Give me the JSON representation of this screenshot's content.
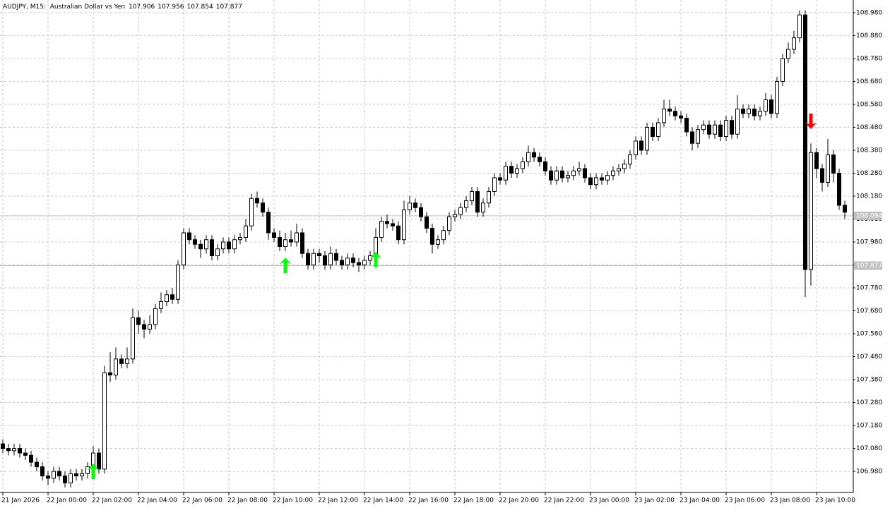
{
  "chart_data": {
    "type": "candlestick",
    "title": "AUDJPY, M15:  Australian Dollar vs Yen",
    "last_ohlc": [
      107.906,
      107.956,
      107.854,
      107.877
    ],
    "categories": [
      "21 Jan 2026",
      null,
      null,
      null,
      null,
      null,
      null,
      null,
      "22 Jan 00:00",
      null,
      null,
      null,
      null,
      null,
      null,
      null,
      "22 Jan 02:00",
      null,
      null,
      null,
      null,
      null,
      null,
      null,
      "22 Jan 04:00",
      null,
      null,
      null,
      null,
      null,
      null,
      null,
      "22 Jan 06:00",
      null,
      null,
      null,
      null,
      null,
      null,
      null,
      "22 Jan 08:00",
      null,
      null,
      null,
      null,
      null,
      null,
      null,
      "22 Jan 10:00",
      null,
      null,
      null,
      null,
      null,
      null,
      null,
      "22 Jan 12:00",
      null,
      null,
      null,
      null,
      null,
      null,
      null,
      "22 Jan 14:00",
      null,
      null,
      null,
      null,
      null,
      null,
      null,
      "22 Jan 16:00",
      null,
      null,
      null,
      null,
      null,
      null,
      null,
      "22 Jan 18:00",
      null,
      null,
      null,
      null,
      null,
      null,
      null,
      "22 Jan 20:00",
      null,
      null,
      null,
      null,
      null,
      null,
      null,
      "22 Jan 22:00",
      null,
      null,
      null,
      null,
      null,
      null,
      null,
      "23 Jan 00:00",
      null,
      null,
      null,
      null,
      null,
      null,
      null,
      "23 Jan 02:00",
      null,
      null,
      null,
      null,
      null,
      null,
      null,
      "23 Jan 04:00",
      null,
      null,
      null,
      null,
      null,
      null,
      null,
      "23 Jan 06:00",
      null,
      null,
      null,
      null,
      null,
      null,
      null,
      "23 Jan 08:00",
      null,
      null,
      null,
      null,
      null,
      null,
      null,
      "23 Jan 10:00",
      null,
      null,
      null,
      null,
      null
    ],
    "open": [
      107.1,
      107.08,
      107.07,
      107.08,
      107.06,
      107.05,
      107.02,
      107.0,
      106.96,
      106.95,
      106.98,
      106.96,
      106.93,
      106.97,
      106.96,
      106.97,
      107.0,
      107.06,
      106.99,
      107.41,
      107.4,
      107.47,
      107.45,
      107.47,
      107.65,
      107.62,
      107.6,
      107.62,
      107.69,
      107.72,
      107.75,
      107.73,
      107.88,
      108.02,
      107.99,
      107.97,
      107.95,
      107.99,
      107.92,
      107.95,
      107.98,
      107.95,
      107.99,
      108.0,
      108.05,
      108.17,
      108.15,
      108.11,
      108.02,
      108.0,
      107.96,
      107.99,
      107.98,
      108.02,
      107.93,
      107.88,
      107.93,
      107.92,
      107.88,
      107.93,
      107.9,
      107.88,
      107.91,
      107.89,
      107.88,
      107.9,
      107.92,
      108.0,
      108.07,
      108.06,
      108.05,
      107.99,
      108.12,
      108.15,
      108.13,
      108.09,
      108.04,
      107.97,
      107.99,
      108.03,
      108.09,
      108.1,
      108.13,
      108.16,
      108.2,
      108.11,
      108.15,
      108.2,
      108.26,
      108.25,
      108.31,
      108.28,
      108.3,
      108.33,
      108.37,
      108.35,
      108.33,
      108.29,
      108.25,
      108.29,
      108.26,
      108.27,
      108.29,
      108.3,
      108.26,
      108.23,
      108.26,
      108.25,
      108.27,
      108.29,
      108.3,
      108.32,
      108.36,
      108.42,
      108.38,
      108.48,
      108.44,
      108.5,
      108.56,
      108.55,
      108.53,
      108.52,
      108.46,
      108.41,
      108.47,
      108.49,
      108.45,
      108.49,
      108.44,
      108.51,
      108.45,
      108.56,
      108.54,
      108.56,
      108.53,
      108.55,
      108.6,
      108.54,
      108.68,
      108.78,
      108.82,
      108.87,
      108.97,
      107.86,
      108.37,
      108.3,
      108.24,
      108.36,
      108.28,
      108.14
    ],
    "high": [
      107.12,
      107.1,
      107.1,
      107.1,
      107.08,
      107.07,
      107.04,
      107.02,
      106.98,
      107.0,
      107.0,
      106.98,
      106.99,
      106.99,
      106.99,
      107.02,
      107.09,
      107.08,
      107.44,
      107.5,
      107.52,
      107.49,
      107.52,
      107.69,
      107.68,
      107.64,
      107.66,
      107.71,
      107.76,
      107.77,
      107.78,
      107.9,
      108.04,
      108.04,
      108.01,
      107.99,
      108.01,
      108.01,
      107.97,
      108.0,
      108.0,
      108.01,
      108.02,
      108.08,
      108.19,
      108.2,
      108.17,
      108.13,
      108.04,
      108.03,
      108.02,
      108.03,
      108.06,
      108.04,
      107.95,
      107.95,
      107.95,
      107.94,
      107.96,
      107.95,
      107.92,
      107.93,
      107.93,
      107.91,
      107.92,
      107.94,
      108.04,
      108.09,
      108.1,
      108.08,
      108.07,
      108.16,
      108.18,
      108.17,
      108.15,
      108.11,
      108.06,
      108.01,
      108.05,
      108.11,
      108.12,
      108.15,
      108.18,
      108.22,
      108.22,
      108.17,
      108.22,
      108.28,
      108.28,
      108.33,
      108.33,
      108.32,
      108.35,
      108.4,
      108.39,
      108.37,
      108.35,
      108.31,
      108.31,
      108.31,
      108.29,
      108.31,
      108.33,
      108.32,
      108.28,
      108.28,
      108.28,
      108.29,
      108.31,
      108.32,
      108.34,
      108.38,
      108.44,
      108.44,
      108.5,
      108.5,
      108.52,
      108.6,
      108.6,
      108.57,
      108.55,
      108.54,
      108.48,
      108.49,
      108.51,
      108.51,
      108.51,
      108.51,
      108.53,
      108.53,
      108.62,
      108.58,
      108.58,
      108.58,
      108.57,
      108.63,
      108.62,
      108.7,
      108.8,
      108.85,
      108.9,
      108.99,
      108.99,
      108.41,
      108.39,
      108.32,
      108.43,
      108.38,
      108.3,
      108.16
    ],
    "low": [
      107.06,
      107.05,
      107.05,
      107.04,
      107.03,
      107.0,
      106.98,
      106.94,
      106.92,
      106.93,
      106.94,
      106.91,
      106.91,
      106.94,
      106.94,
      106.95,
      106.98,
      106.97,
      106.97,
      107.37,
      107.38,
      107.43,
      107.43,
      107.45,
      107.58,
      107.56,
      107.58,
      107.6,
      107.67,
      107.7,
      107.71,
      107.71,
      107.86,
      107.97,
      107.95,
      107.91,
      107.93,
      107.9,
      107.9,
      107.93,
      107.93,
      107.93,
      107.97,
      107.98,
      108.03,
      108.13,
      108.09,
      107.99,
      107.98,
      107.94,
      107.94,
      107.96,
      107.96,
      107.91,
      107.86,
      107.86,
      107.89,
      107.86,
      107.86,
      107.88,
      107.86,
      107.86,
      107.87,
      107.85,
      107.86,
      107.88,
      107.9,
      107.98,
      108.04,
      108.03,
      107.97,
      107.97,
      108.1,
      108.11,
      108.07,
      108.02,
      107.93,
      107.95,
      107.97,
      108.01,
      108.07,
      108.08,
      108.11,
      108.14,
      108.09,
      108.09,
      108.13,
      108.18,
      108.23,
      108.23,
      108.26,
      108.26,
      108.28,
      108.31,
      108.33,
      108.31,
      108.27,
      108.23,
      108.23,
      108.24,
      108.24,
      108.25,
      108.27,
      108.24,
      108.21,
      108.21,
      108.23,
      108.23,
      108.25,
      108.27,
      108.28,
      108.3,
      108.34,
      108.36,
      108.36,
      108.42,
      108.42,
      108.48,
      108.53,
      108.51,
      108.5,
      108.44,
      108.38,
      108.39,
      108.45,
      108.43,
      108.43,
      108.42,
      108.42,
      108.43,
      108.43,
      108.52,
      108.52,
      108.51,
      108.51,
      108.53,
      108.52,
      108.52,
      108.66,
      108.76,
      108.8,
      108.85,
      107.74,
      107.79,
      108.26,
      108.2,
      108.22,
      108.24,
      108.12,
      108.08
    ],
    "close": [
      107.08,
      107.07,
      107.08,
      107.06,
      107.05,
      107.02,
      107.0,
      106.96,
      106.95,
      106.98,
      106.96,
      106.93,
      106.97,
      106.96,
      106.97,
      107.0,
      107.06,
      106.99,
      107.41,
      107.4,
      107.47,
      107.45,
      107.47,
      107.65,
      107.62,
      107.6,
      107.62,
      107.69,
      107.72,
      107.75,
      107.73,
      107.88,
      108.02,
      107.99,
      107.97,
      107.95,
      107.99,
      107.92,
      107.95,
      107.98,
      107.95,
      107.99,
      108.0,
      108.05,
      108.17,
      108.15,
      108.11,
      108.02,
      108.0,
      107.96,
      107.99,
      107.98,
      108.02,
      107.93,
      107.88,
      107.93,
      107.92,
      107.88,
      107.93,
      107.9,
      107.88,
      107.91,
      107.89,
      107.88,
      107.9,
      107.92,
      108.0,
      108.07,
      108.06,
      108.05,
      107.99,
      108.12,
      108.15,
      108.13,
      108.09,
      108.04,
      107.97,
      107.99,
      108.03,
      108.09,
      108.1,
      108.13,
      108.16,
      108.2,
      108.11,
      108.15,
      108.2,
      108.26,
      108.25,
      108.31,
      108.28,
      108.3,
      108.33,
      108.37,
      108.35,
      108.33,
      108.29,
      108.25,
      108.29,
      108.26,
      108.27,
      108.29,
      108.3,
      108.26,
      108.23,
      108.26,
      108.25,
      108.27,
      108.29,
      108.3,
      108.32,
      108.36,
      108.42,
      108.38,
      108.48,
      108.44,
      108.5,
      108.56,
      108.55,
      108.53,
      108.52,
      108.46,
      108.41,
      108.47,
      108.49,
      108.45,
      108.49,
      108.44,
      108.51,
      108.45,
      108.56,
      108.54,
      108.56,
      108.53,
      108.55,
      108.6,
      108.54,
      108.68,
      108.78,
      108.82,
      108.87,
      108.97,
      107.86,
      108.37,
      108.3,
      108.24,
      108.36,
      108.28,
      108.14,
      108.11
    ],
    "up_arrows": [
      null,
      null,
      null,
      null,
      null,
      null,
      null,
      null,
      null,
      null,
      null,
      null,
      null,
      null,
      null,
      null,
      107.014,
      null,
      null,
      null,
      null,
      null,
      null,
      null,
      null,
      null,
      null,
      null,
      null,
      null,
      null,
      null,
      null,
      null,
      null,
      null,
      null,
      null,
      null,
      null,
      null,
      null,
      null,
      null,
      null,
      null,
      null,
      null,
      null,
      null,
      107.912,
      null,
      null,
      null,
      null,
      null,
      null,
      null,
      null,
      null,
      null,
      null,
      null,
      null,
      null,
      null,
      107.937,
      null,
      null,
      null,
      null,
      null,
      null,
      null,
      null,
      null,
      null,
      null,
      null,
      null,
      null,
      null,
      null,
      null,
      null,
      null,
      null,
      null,
      null,
      null,
      null,
      null,
      null,
      null,
      null,
      null,
      null,
      null,
      null,
      null,
      null,
      null,
      null,
      null,
      null,
      null,
      null,
      null,
      null,
      null,
      null,
      null,
      null,
      null,
      null,
      null,
      null,
      null,
      null,
      null,
      null,
      null,
      null,
      null,
      null,
      null,
      null,
      null,
      null,
      null,
      null,
      null,
      null,
      null,
      null,
      null,
      null,
      null,
      null,
      null,
      null,
      null,
      null,
      null,
      null,
      null,
      null,
      null,
      null,
      null,
      null,
      null,
      null,
      null
    ],
    "down_arrows": [
      null,
      null,
      null,
      null,
      null,
      null,
      null,
      null,
      null,
      null,
      null,
      null,
      null,
      null,
      null,
      null,
      null,
      null,
      null,
      null,
      null,
      null,
      null,
      null,
      null,
      null,
      null,
      null,
      null,
      null,
      null,
      null,
      null,
      null,
      null,
      null,
      null,
      null,
      null,
      null,
      null,
      null,
      null,
      null,
      null,
      null,
      null,
      null,
      null,
      null,
      null,
      null,
      null,
      null,
      null,
      null,
      null,
      null,
      null,
      null,
      null,
      null,
      null,
      null,
      null,
      null,
      null,
      null,
      null,
      null,
      null,
      null,
      null,
      null,
      null,
      null,
      null,
      null,
      null,
      null,
      null,
      null,
      null,
      null,
      null,
      null,
      null,
      null,
      null,
      null,
      null,
      null,
      null,
      null,
      null,
      null,
      null,
      null,
      null,
      null,
      null,
      null,
      null,
      null,
      null,
      null,
      null,
      null,
      null,
      null,
      null,
      null,
      null,
      null,
      null,
      null,
      null,
      null,
      null,
      null,
      null,
      null,
      null,
      null,
      null,
      null,
      null,
      null,
      null,
      null,
      null,
      null,
      null,
      null,
      null,
      null,
      null,
      null,
      null,
      null,
      null,
      null,
      null,
      108.472,
      null,
      null,
      null,
      null,
      null,
      null
    ],
    "price_lines": [
      108.094,
      107.877
    ],
    "up_color": "#ffffff",
    "down_color": "#000000",
    "outline_color": "#000000",
    "up_arrow_color": "#00ff00",
    "down_arrow_color": "#ff0000",
    "price_line_color": "#c0c0c0",
    "grid": true,
    "ylim": [
      106.888,
      109.035
    ],
    "yticks": [
      {
        "value": 106.98,
        "label": "106.980"
      },
      {
        "value": 107.08,
        "label": "107.080"
      },
      {
        "value": 107.18,
        "label": "107.180"
      },
      {
        "value": 107.28,
        "label": "107.280"
      },
      {
        "value": 107.38,
        "label": "107.380"
      },
      {
        "value": 107.48,
        "label": "107.480"
      },
      {
        "value": 107.58,
        "label": "107.580"
      },
      {
        "value": 107.68,
        "label": "107.680"
      },
      {
        "value": 107.78,
        "label": "107.780"
      },
      {
        "value": 107.88,
        "label": "107.880"
      },
      {
        "value": 107.98,
        "label": "107.980"
      },
      {
        "value": 108.08,
        "label": "108.080"
      },
      {
        "value": 108.18,
        "label": "108.180"
      },
      {
        "value": 108.28,
        "label": "108.280"
      },
      {
        "value": 108.38,
        "label": "108.380"
      },
      {
        "value": 108.48,
        "label": "108.480"
      },
      {
        "value": 108.58,
        "label": "108.580"
      },
      {
        "value": 108.68,
        "label": "108.680"
      },
      {
        "value": 108.78,
        "label": "108.780"
      },
      {
        "value": 108.88,
        "label": "108.880"
      },
      {
        "value": 108.98,
        "label": "108.980"
      }
    ]
  }
}
